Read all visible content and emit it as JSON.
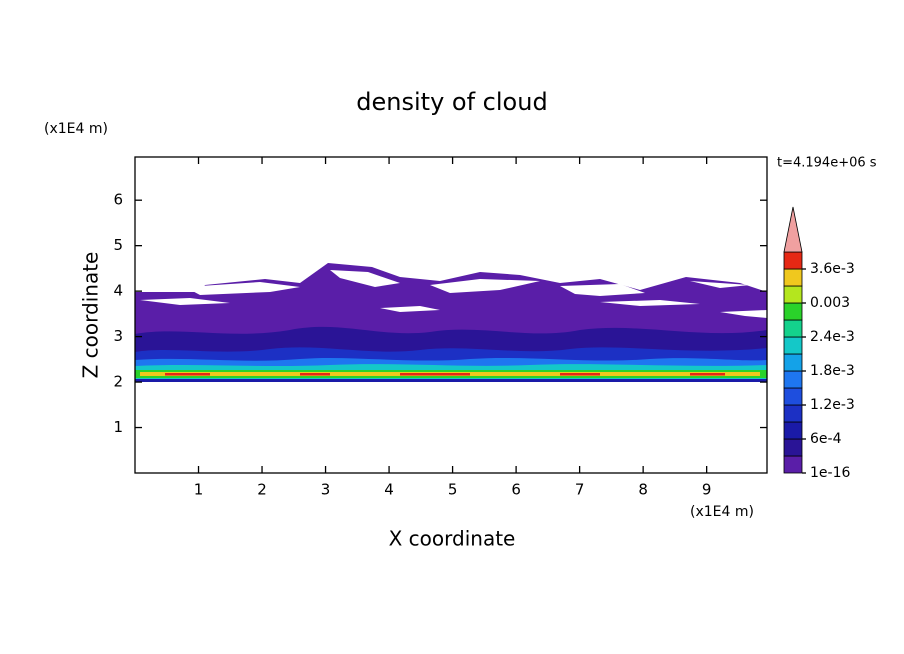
{
  "chart_data": {
    "type": "contour",
    "title": "density of cloud",
    "xlabel": "X coordinate",
    "ylabel": "Z coordinate",
    "x_unit": "(x1E4 m)",
    "y_unit": "(x1E4 m)",
    "time_label": "t=4.194e+06 s",
    "xlim": [
      0,
      9.95
    ],
    "xticks": [
      1,
      2,
      3,
      4,
      5,
      6,
      7,
      8,
      9
    ],
    "ylim": [
      0,
      6.95
    ],
    "yticks": [
      1,
      2,
      3,
      4,
      5,
      6
    ],
    "clim": [
      1e-16,
      0.0039
    ],
    "colors": [
      "#5a1ea8",
      "#2a1496",
      "#1a1aa8",
      "#1c30c4",
      "#1e4ede",
      "#1e76f0",
      "#14a2e8",
      "#14c8c8",
      "#14d28c",
      "#2ad22a",
      "#b4e61e",
      "#f0c81e",
      "#e62814"
    ],
    "extend_color": "#f0a0a0",
    "cticks": [
      {
        "value": 1e-16,
        "label": "1e-16"
      },
      {
        "value": 0.0006,
        "label": "6e-4"
      },
      {
        "value": 0.0012,
        "label": "1.2e-3"
      },
      {
        "value": 0.0018,
        "label": "1.8e-3"
      },
      {
        "value": 0.0024,
        "label": "2.4e-3"
      },
      0.003,
      {
        "value": 0.0036,
        "label": "3.6e-3"
      }
    ]
  }
}
